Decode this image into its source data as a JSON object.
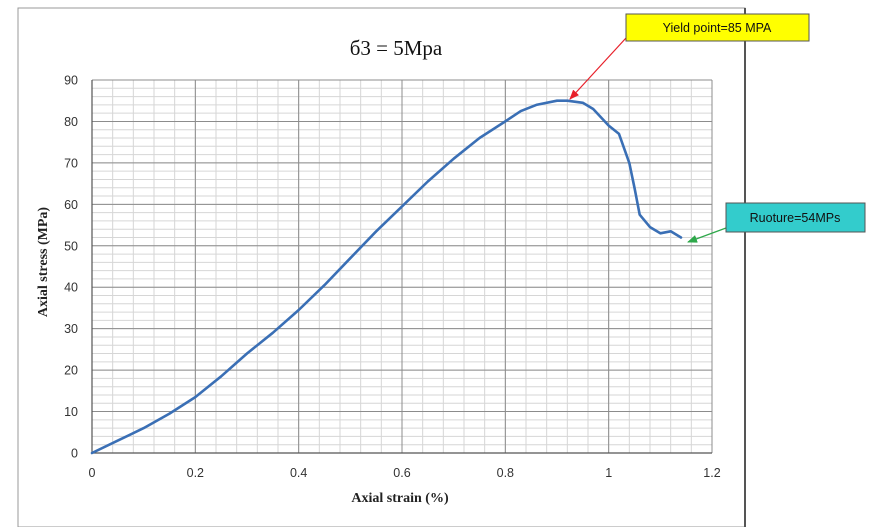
{
  "chart_data": {
    "type": "line",
    "title": "б3 = 5Mpa",
    "xlabel": "Axial strain (%)",
    "ylabel": "Axial stress (MPa)",
    "xlim": [
      0,
      1.2
    ],
    "ylim": [
      0,
      90
    ],
    "x_ticks": [
      0,
      0.2,
      0.4,
      0.6,
      0.8,
      1,
      1.2
    ],
    "x_tick_labels": [
      "0",
      "0.2",
      "0.4",
      "0.6",
      "0.8",
      "1",
      "1.2"
    ],
    "y_ticks": [
      0,
      10,
      20,
      30,
      40,
      50,
      60,
      70,
      80,
      90
    ],
    "y_tick_labels": [
      "0",
      "10",
      "20",
      "30",
      "40",
      "50",
      "60",
      "70",
      "80",
      "90"
    ],
    "grid": {
      "major": true,
      "minor": true,
      "x_minor_step": 0.04,
      "y_minor_step": 2
    },
    "legend": "none",
    "series": [
      {
        "color": "#3a6fb5",
        "x": [
          0,
          0.05,
          0.1,
          0.15,
          0.2,
          0.25,
          0.3,
          0.35,
          0.4,
          0.45,
          0.5,
          0.55,
          0.6,
          0.65,
          0.7,
          0.75,
          0.8,
          0.83,
          0.86,
          0.9,
          0.92,
          0.95,
          0.97,
          1.0,
          1.02,
          1.04,
          1.05,
          1.06,
          1.08,
          1.1,
          1.12,
          1.14
        ],
        "y": [
          0,
          3,
          6,
          9.5,
          13.5,
          18.5,
          24,
          29,
          34.5,
          40.5,
          47,
          53.5,
          59.5,
          65.5,
          71,
          76,
          80,
          82.5,
          84,
          85,
          85,
          84.5,
          83,
          79,
          77,
          70,
          64,
          57.5,
          54.5,
          53,
          53.5,
          52
        ]
      }
    ],
    "annotations": [
      {
        "text": "Yield point=85 MPA",
        "x": 0.92,
        "y": 85,
        "box_color": "#ffff00",
        "arrow_color": "#e8202a"
      },
      {
        "text": "Ruoture=54MPs",
        "x": 1.15,
        "y": 51.5,
        "box_color": "#33cccc",
        "arrow_color": "#2ea84a"
      }
    ]
  }
}
